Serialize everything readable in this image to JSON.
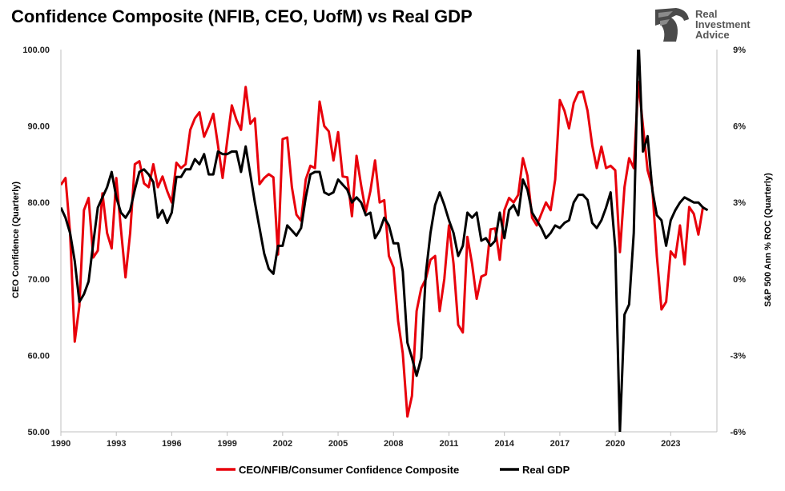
{
  "title": "Confidence Composite (NFIB, CEO, UofM) vs Real GDP",
  "logo": {
    "icon": "eagle-head-icon",
    "lines": [
      "Real",
      "Investment",
      "Advice"
    ]
  },
  "colors": {
    "composite": "#e8000b",
    "gdp": "#000000",
    "axis": "#bfbfbf"
  },
  "chart_data": {
    "type": "line",
    "xlim": [
      1990,
      2025.5
    ],
    "x_ticks": [
      1990,
      1993,
      1996,
      1999,
      2002,
      2005,
      2008,
      2011,
      2014,
      2017,
      2020,
      2023
    ],
    "ylabel_left": "CEO Confidence (Quarterly)",
    "ylim_left": [
      50,
      100
    ],
    "y_ticks_left": [
      "100.00",
      "90.00",
      "80.00",
      "70.00",
      "60.00",
      "50.00"
    ],
    "ylabel_right": "S&P 500 Ann % ROC (Quarterly)",
    "ylim_right": [
      -6,
      9
    ],
    "y_ticks_right": [
      "9%",
      "6%",
      "3%",
      "0%",
      "-3%",
      "-6%"
    ],
    "legend_position": "bottom",
    "series": [
      {
        "name": "CEO/NFIB/Consumer Confidence Composite",
        "axis": "left",
        "points": [
          [
            1990.0,
            82.3
          ],
          [
            1990.25,
            83.2
          ],
          [
            1990.5,
            76.0
          ],
          [
            1990.75,
            61.8
          ],
          [
            1991.0,
            66.5
          ],
          [
            1991.25,
            79.0
          ],
          [
            1991.5,
            80.6
          ],
          [
            1991.75,
            72.8
          ],
          [
            1992.0,
            73.7
          ],
          [
            1992.25,
            81.2
          ],
          [
            1992.5,
            76.0
          ],
          [
            1992.75,
            74.0
          ],
          [
            1993.0,
            83.2
          ],
          [
            1993.25,
            76.5
          ],
          [
            1993.5,
            70.2
          ],
          [
            1993.75,
            76.0
          ],
          [
            1994.0,
            85.0
          ],
          [
            1994.25,
            85.4
          ],
          [
            1994.5,
            82.5
          ],
          [
            1994.75,
            82.0
          ],
          [
            1995.0,
            85.0
          ],
          [
            1995.25,
            82.0
          ],
          [
            1995.5,
            83.4
          ],
          [
            1995.75,
            81.5
          ],
          [
            1996.0,
            80.0
          ],
          [
            1996.25,
            85.2
          ],
          [
            1996.5,
            84.5
          ],
          [
            1996.75,
            85.0
          ],
          [
            1997.0,
            89.5
          ],
          [
            1997.25,
            91.0
          ],
          [
            1997.5,
            91.8
          ],
          [
            1997.75,
            88.6
          ],
          [
            1998.0,
            90.0
          ],
          [
            1998.25,
            91.6
          ],
          [
            1998.5,
            87.5
          ],
          [
            1998.75,
            83.2
          ],
          [
            1999.0,
            88.0
          ],
          [
            1999.25,
            92.7
          ],
          [
            1999.5,
            90.8
          ],
          [
            1999.75,
            89.5
          ],
          [
            2000.0,
            95.1
          ],
          [
            2000.25,
            90.3
          ],
          [
            2000.5,
            91.0
          ],
          [
            2000.75,
            82.4
          ],
          [
            2001.0,
            83.2
          ],
          [
            2001.25,
            83.7
          ],
          [
            2001.5,
            83.3
          ],
          [
            2001.75,
            73.2
          ],
          [
            2002.0,
            88.3
          ],
          [
            2002.25,
            88.5
          ],
          [
            2002.5,
            82.0
          ],
          [
            2002.75,
            78.4
          ],
          [
            2003.0,
            77.6
          ],
          [
            2003.25,
            83.0
          ],
          [
            2003.5,
            84.8
          ],
          [
            2003.75,
            84.5
          ],
          [
            2004.0,
            93.2
          ],
          [
            2004.25,
            90.0
          ],
          [
            2004.5,
            89.3
          ],
          [
            2004.75,
            85.5
          ],
          [
            2005.0,
            89.2
          ],
          [
            2005.25,
            83.4
          ],
          [
            2005.5,
            83.3
          ],
          [
            2005.75,
            78.2
          ],
          [
            2006.0,
            86.1
          ],
          [
            2006.25,
            82.2
          ],
          [
            2006.5,
            78.8
          ],
          [
            2006.75,
            81.5
          ],
          [
            2007.0,
            85.5
          ],
          [
            2007.25,
            80.0
          ],
          [
            2007.5,
            80.3
          ],
          [
            2007.75,
            73.0
          ],
          [
            2008.0,
            71.5
          ],
          [
            2008.25,
            64.5
          ],
          [
            2008.5,
            60.3
          ],
          [
            2008.75,
            52.0
          ],
          [
            2009.0,
            54.7
          ],
          [
            2009.25,
            65.8
          ],
          [
            2009.5,
            68.8
          ],
          [
            2009.75,
            70.0
          ],
          [
            2010.0,
            72.5
          ],
          [
            2010.25,
            73.0
          ],
          [
            2010.5,
            65.8
          ],
          [
            2010.75,
            70.0
          ],
          [
            2011.0,
            77.0
          ],
          [
            2011.25,
            72.0
          ],
          [
            2011.5,
            64.0
          ],
          [
            2011.75,
            63.0
          ],
          [
            2012.0,
            75.5
          ],
          [
            2012.25,
            72.0
          ],
          [
            2012.5,
            67.4
          ],
          [
            2012.75,
            70.3
          ],
          [
            2013.0,
            70.6
          ],
          [
            2013.25,
            76.5
          ],
          [
            2013.5,
            76.6
          ],
          [
            2013.75,
            72.5
          ],
          [
            2014.0,
            79.0
          ],
          [
            2014.25,
            80.6
          ],
          [
            2014.5,
            80.0
          ],
          [
            2014.75,
            81.0
          ],
          [
            2015.0,
            85.8
          ],
          [
            2015.25,
            83.5
          ],
          [
            2015.5,
            78.0
          ],
          [
            2015.75,
            77.0
          ],
          [
            2016.0,
            78.5
          ],
          [
            2016.25,
            80.0
          ],
          [
            2016.5,
            79.0
          ],
          [
            2016.75,
            83.0
          ],
          [
            2017.0,
            93.4
          ],
          [
            2017.25,
            92.0
          ],
          [
            2017.5,
            89.7
          ],
          [
            2017.75,
            93.0
          ],
          [
            2018.0,
            94.4
          ],
          [
            2018.25,
            94.5
          ],
          [
            2018.5,
            92.0
          ],
          [
            2018.75,
            87.5
          ],
          [
            2019.0,
            84.5
          ],
          [
            2019.25,
            87.3
          ],
          [
            2019.5,
            84.5
          ],
          [
            2019.75,
            84.8
          ],
          [
            2020.0,
            84.2
          ],
          [
            2020.25,
            73.5
          ],
          [
            2020.5,
            82.0
          ],
          [
            2020.75,
            85.8
          ],
          [
            2021.0,
            84.5
          ],
          [
            2021.25,
            95.8
          ],
          [
            2021.5,
            90.0
          ],
          [
            2021.75,
            84.2
          ],
          [
            2022.0,
            82.0
          ],
          [
            2022.25,
            73.0
          ],
          [
            2022.5,
            66.0
          ],
          [
            2022.75,
            67.0
          ],
          [
            2023.0,
            73.6
          ],
          [
            2023.25,
            72.8
          ],
          [
            2023.5,
            77.0
          ],
          [
            2023.75,
            71.9
          ],
          [
            2024.0,
            79.4
          ],
          [
            2024.25,
            78.5
          ],
          [
            2024.5,
            75.8
          ],
          [
            2024.75,
            79.5
          ]
        ]
      },
      {
        "name": "Real GDP",
        "axis": "right",
        "points": [
          [
            1990.0,
            2.8
          ],
          [
            1990.25,
            2.4
          ],
          [
            1990.5,
            1.8
          ],
          [
            1990.75,
            0.7
          ],
          [
            1991.0,
            -0.9
          ],
          [
            1991.25,
            -0.6
          ],
          [
            1991.5,
            -0.1
          ],
          [
            1991.75,
            1.4
          ],
          [
            1992.0,
            2.8
          ],
          [
            1992.25,
            3.2
          ],
          [
            1992.5,
            3.6
          ],
          [
            1992.75,
            4.2
          ],
          [
            1993.0,
            3.2
          ],
          [
            1993.25,
            2.6
          ],
          [
            1993.5,
            2.4
          ],
          [
            1993.75,
            2.7
          ],
          [
            1994.0,
            3.5
          ],
          [
            1994.25,
            4.2
          ],
          [
            1994.5,
            4.3
          ],
          [
            1994.75,
            4.1
          ],
          [
            1995.0,
            3.8
          ],
          [
            1995.25,
            2.4
          ],
          [
            1995.5,
            2.7
          ],
          [
            1995.75,
            2.2
          ],
          [
            1996.0,
            2.6
          ],
          [
            1996.25,
            4.0
          ],
          [
            1996.5,
            4.0
          ],
          [
            1996.75,
            4.3
          ],
          [
            1997.0,
            4.3
          ],
          [
            1997.25,
            4.7
          ],
          [
            1997.5,
            4.5
          ],
          [
            1997.75,
            4.9
          ],
          [
            1998.0,
            4.1
          ],
          [
            1998.25,
            4.1
          ],
          [
            1998.5,
            5.0
          ],
          [
            1998.75,
            4.9
          ],
          [
            1999.0,
            4.9
          ],
          [
            1999.25,
            5.0
          ],
          [
            1999.5,
            5.0
          ],
          [
            1999.75,
            4.2
          ],
          [
            2000.0,
            5.2
          ],
          [
            2000.25,
            4.1
          ],
          [
            2000.5,
            3.0
          ],
          [
            2000.75,
            2.0
          ],
          [
            2001.0,
            1.0
          ],
          [
            2001.25,
            0.4
          ],
          [
            2001.5,
            0.2
          ],
          [
            2001.75,
            1.3
          ],
          [
            2002.0,
            1.3
          ],
          [
            2002.25,
            2.1
          ],
          [
            2002.5,
            1.9
          ],
          [
            2002.75,
            1.7
          ],
          [
            2003.0,
            2.0
          ],
          [
            2003.25,
            3.2
          ],
          [
            2003.5,
            4.1
          ],
          [
            2003.75,
            4.2
          ],
          [
            2004.0,
            4.2
          ],
          [
            2004.25,
            3.4
          ],
          [
            2004.5,
            3.3
          ],
          [
            2004.75,
            3.4
          ],
          [
            2005.0,
            3.9
          ],
          [
            2005.25,
            3.7
          ],
          [
            2005.5,
            3.5
          ],
          [
            2005.75,
            3.0
          ],
          [
            2006.0,
            3.2
          ],
          [
            2006.25,
            3.0
          ],
          [
            2006.5,
            2.5
          ],
          [
            2006.75,
            2.6
          ],
          [
            2007.0,
            1.6
          ],
          [
            2007.25,
            1.9
          ],
          [
            2007.5,
            2.4
          ],
          [
            2007.75,
            2.1
          ],
          [
            2008.0,
            1.4
          ],
          [
            2008.25,
            1.4
          ],
          [
            2008.5,
            0.3
          ],
          [
            2008.75,
            -2.5
          ],
          [
            2009.0,
            -3.1
          ],
          [
            2009.25,
            -3.8
          ],
          [
            2009.5,
            -3.1
          ],
          [
            2009.75,
            0.2
          ],
          [
            2010.0,
            1.8
          ],
          [
            2010.25,
            2.9
          ],
          [
            2010.5,
            3.4
          ],
          [
            2010.75,
            2.9
          ],
          [
            2011.0,
            2.3
          ],
          [
            2011.25,
            1.8
          ],
          [
            2011.5,
            0.9
          ],
          [
            2011.75,
            1.3
          ],
          [
            2012.0,
            2.6
          ],
          [
            2012.25,
            2.4
          ],
          [
            2012.5,
            2.6
          ],
          [
            2012.75,
            1.5
          ],
          [
            2013.0,
            1.6
          ],
          [
            2013.25,
            1.3
          ],
          [
            2013.5,
            1.5
          ],
          [
            2013.75,
            2.6
          ],
          [
            2014.0,
            1.6
          ],
          [
            2014.25,
            2.7
          ],
          [
            2014.5,
            2.9
          ],
          [
            2014.75,
            2.5
          ],
          [
            2015.0,
            3.9
          ],
          [
            2015.25,
            3.5
          ],
          [
            2015.5,
            2.6
          ],
          [
            2015.75,
            2.3
          ],
          [
            2016.0,
            2.0
          ],
          [
            2016.25,
            1.6
          ],
          [
            2016.5,
            1.8
          ],
          [
            2016.75,
            2.1
          ],
          [
            2017.0,
            2.0
          ],
          [
            2017.25,
            2.2
          ],
          [
            2017.5,
            2.3
          ],
          [
            2017.75,
            3.0
          ],
          [
            2018.0,
            3.3
          ],
          [
            2018.25,
            3.3
          ],
          [
            2018.5,
            3.1
          ],
          [
            2018.75,
            2.2
          ],
          [
            2019.0,
            2.0
          ],
          [
            2019.25,
            2.3
          ],
          [
            2019.5,
            2.8
          ],
          [
            2019.75,
            3.4
          ],
          [
            2020.0,
            1.2
          ],
          [
            2020.25,
            -6.0
          ],
          [
            2020.5,
            -1.4
          ],
          [
            2020.75,
            -1.0
          ],
          [
            2021.0,
            1.8
          ],
          [
            2021.25,
            9.5
          ],
          [
            2021.5,
            5.0
          ],
          [
            2021.75,
            5.6
          ],
          [
            2022.0,
            3.5
          ],
          [
            2022.25,
            2.5
          ],
          [
            2022.5,
            2.3
          ],
          [
            2022.75,
            1.3
          ],
          [
            2023.0,
            2.3
          ],
          [
            2023.25,
            2.7
          ],
          [
            2023.5,
            3.0
          ],
          [
            2023.75,
            3.2
          ],
          [
            2024.0,
            3.1
          ],
          [
            2024.25,
            3.0
          ],
          [
            2024.5,
            3.0
          ],
          [
            2024.75,
            2.8
          ],
          [
            2025.0,
            2.7
          ]
        ]
      }
    ]
  }
}
